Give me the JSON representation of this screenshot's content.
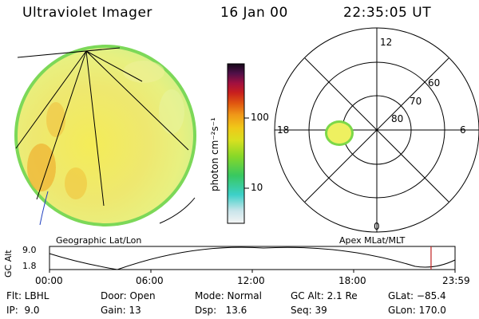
{
  "header": {
    "title": "Ultraviolet Imager",
    "date": "16 Jan 00",
    "time": "22:35:05 UT"
  },
  "colorbar": {
    "unit_label": "photon cm⁻²s⁻¹",
    "tick_100": "100",
    "tick_10": "10",
    "colors": [
      "#efefef",
      "#cfe8ea",
      "#3fd0c8",
      "#36c86a",
      "#7ed628",
      "#c8e028",
      "#f0d818",
      "#f0a818",
      "#e06010",
      "#c82020",
      "#a01040",
      "#5a1048",
      "#1a0a20"
    ]
  },
  "left_panel": {
    "caption": "Geographic Lat/Lon"
  },
  "right_panel": {
    "caption": "Apex MLat/MLT",
    "mlt_labels": {
      "top": "12",
      "right": "6",
      "bottom": "0",
      "left": "18"
    },
    "lat_labels": [
      "60",
      "70",
      "80"
    ]
  },
  "altitude_plot": {
    "ylabel": "GC Alt",
    "y_ticks": [
      "9.0",
      "1.8"
    ],
    "x_ticks": [
      "00:00",
      "06:00",
      "12:00",
      "18:00",
      "23:59"
    ],
    "current_time_marker_hours": 22.58,
    "marker_color": "#c02020"
  },
  "info": {
    "flt": "Flt: LBHL",
    "door": "Door: Open",
    "mode": "Mode: Normal",
    "gc_alt": "GC Alt: 2.1 Re",
    "glat": "GLat: −85.4",
    "ip": "IP:  9.0",
    "gain": "Gain: 13",
    "dsp": "Dsp:   13.6",
    "seq": "Seq: 39",
    "glon": "GLon: 170.0"
  }
}
